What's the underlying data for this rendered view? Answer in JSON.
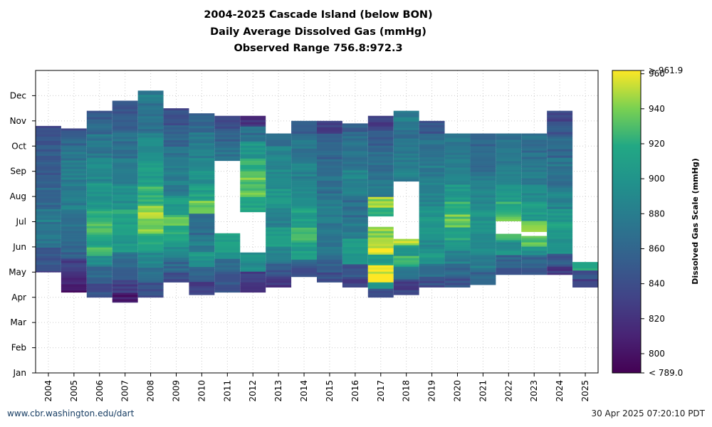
{
  "title_lines": [
    "2004-2025 Cascade Island (below BON)",
    "Daily Average Dissolved Gas (mmHg)",
    "Observed Range 756.8:972.3"
  ],
  "footer": {
    "left": "www.cbr.washington.edu/dart",
    "right": "30 Apr 2025 07:20:10 PDT"
  },
  "chart_data": {
    "type": "heatmap",
    "x_label": "",
    "y_label": "",
    "x_categories": [
      "2004",
      "2005",
      "2006",
      "2007",
      "2008",
      "2009",
      "2010",
      "2011",
      "2012",
      "2013",
      "2014",
      "2015",
      "2016",
      "2017",
      "2018",
      "2019",
      "2020",
      "2021",
      "2022",
      "2023",
      "2024",
      "2025"
    ],
    "y_ticks": [
      "Jan",
      "Feb",
      "Mar",
      "Apr",
      "May",
      "Jun",
      "Jul",
      "Aug",
      "Sep",
      "Oct",
      "Nov",
      "Dec"
    ],
    "grid": true,
    "colorbar": {
      "label": "Dissolved Gas Scale (mmHg)",
      "min": 789.0,
      "max": 961.9,
      "ticks": [
        800,
        820,
        840,
        860,
        880,
        900,
        920,
        940,
        960
      ],
      "min_label": "< 789.0",
      "max_label": "> 961.9",
      "colormap": "viridis"
    },
    "columns": [
      {
        "year": "2004",
        "start_month": 4.0,
        "end_month": 9.8,
        "segments": [
          [
            4.0,
            835
          ],
          [
            4.3,
            848
          ],
          [
            5.0,
            872
          ],
          [
            5.5,
            866
          ],
          [
            6.0,
            880
          ],
          [
            6.5,
            860
          ],
          [
            7.5,
            850
          ],
          [
            8.5,
            848
          ],
          [
            9.5,
            835
          ]
        ]
      },
      {
        "year": "2005",
        "start_month": 3.2,
        "end_month": 9.7,
        "segments": [
          [
            3.2,
            800
          ],
          [
            3.5,
            812
          ],
          [
            4.0,
            830
          ],
          [
            4.5,
            858
          ],
          [
            5.5,
            870
          ],
          [
            6.5,
            880
          ],
          [
            8.0,
            875
          ],
          [
            9.0,
            860
          ],
          [
            9.5,
            845
          ]
        ]
      },
      {
        "year": "2006",
        "start_month": 3.0,
        "end_month": 10.4,
        "segments": [
          [
            3.0,
            842
          ],
          [
            3.5,
            860
          ],
          [
            4.2,
            890
          ],
          [
            4.6,
            930
          ],
          [
            5.0,
            912
          ],
          [
            5.5,
            935
          ],
          [
            6.0,
            920
          ],
          [
            6.5,
            902
          ],
          [
            7.5,
            890
          ],
          [
            8.5,
            875
          ],
          [
            9.5,
            860
          ],
          [
            10.0,
            850
          ]
        ]
      },
      {
        "year": "2007",
        "start_month": 2.8,
        "end_month": 10.8,
        "segments": [
          [
            2.8,
            805
          ],
          [
            3.2,
            830
          ],
          [
            3.7,
            850
          ],
          [
            4.2,
            870
          ],
          [
            4.8,
            902
          ],
          [
            5.5,
            915
          ],
          [
            6.5,
            895
          ],
          [
            7.5,
            880
          ],
          [
            8.5,
            868
          ],
          [
            9.5,
            855
          ],
          [
            10.3,
            845
          ]
        ]
      },
      {
        "year": "2008",
        "start_month": 3.0,
        "end_month": 11.2,
        "segments": [
          [
            3.0,
            840
          ],
          [
            3.6,
            865
          ],
          [
            4.2,
            890
          ],
          [
            4.8,
            912
          ],
          [
            5.5,
            938
          ],
          [
            6.0,
            945
          ],
          [
            6.6,
            925
          ],
          [
            7.5,
            905
          ],
          [
            8.5,
            890
          ],
          [
            9.5,
            870
          ],
          [
            10.3,
            868
          ],
          [
            10.8,
            880
          ]
        ]
      },
      {
        "year": "2009",
        "start_month": 3.6,
        "end_month": 10.5,
        "segments": [
          [
            3.6,
            836
          ],
          [
            4.0,
            862
          ],
          [
            4.6,
            895
          ],
          [
            5.2,
            915
          ],
          [
            5.8,
            930
          ],
          [
            6.3,
            905
          ],
          [
            7.0,
            880
          ],
          [
            8.0,
            875
          ],
          [
            9.0,
            858
          ],
          [
            9.8,
            840
          ]
        ]
      },
      {
        "year": "2010",
        "start_month": 3.1,
        "end_month": 10.3,
        "segments": [
          [
            3.1,
            830
          ],
          [
            3.6,
            858
          ],
          [
            4.2,
            900
          ],
          [
            4.8,
            880
          ],
          [
            5.5,
            865
          ],
          [
            6.3,
            935
          ],
          [
            6.8,
            912
          ],
          [
            7.5,
            895
          ],
          [
            8.5,
            880
          ],
          [
            9.5,
            862
          ]
        ]
      },
      {
        "year": "2011",
        "start_month": 3.2,
        "end_month": 10.2,
        "segments": [
          [
            3.2,
            845
          ],
          [
            3.6,
            845
          ],
          [
            4.0,
            865
          ],
          [
            4.5,
            905
          ],
          [
            5.0,
            915
          ],
          [
            5.5,
            null
          ],
          [
            8.4,
            870
          ],
          [
            9.0,
            858
          ],
          [
            9.7,
            840
          ]
        ]
      },
      {
        "year": "2012",
        "start_month": 3.2,
        "end_month": 10.2,
        "segments": [
          [
            3.2,
            815
          ],
          [
            3.5,
            830
          ],
          [
            4.0,
            895
          ],
          [
            4.8,
            null
          ],
          [
            6.4,
            915
          ],
          [
            7.0,
            935
          ],
          [
            7.8,
            925
          ],
          [
            8.5,
            902
          ],
          [
            9.2,
            868
          ],
          [
            9.8,
            820
          ]
        ]
      },
      {
        "year": "2013",
        "start_month": 3.4,
        "end_month": 9.5,
        "segments": [
          [
            3.4,
            825
          ],
          [
            3.8,
            850
          ],
          [
            4.3,
            885
          ],
          [
            5.0,
            905
          ],
          [
            5.8,
            885
          ],
          [
            6.5,
            900
          ],
          [
            7.3,
            890
          ],
          [
            8.3,
            885
          ],
          [
            9.0,
            870
          ]
        ]
      },
      {
        "year": "2014",
        "start_month": 3.4,
        "end_month": 10.0,
        "segments": [
          [
            3.6,
            null
          ],
          [
            3.8,
            845
          ],
          [
            4.2,
            858
          ],
          [
            4.5,
            908
          ],
          [
            5.2,
            930
          ],
          [
            5.8,
            910
          ],
          [
            6.5,
            892
          ],
          [
            7.5,
            882
          ],
          [
            8.5,
            874
          ],
          [
            9.5,
            850
          ]
        ]
      },
      {
        "year": "2015",
        "start_month": 3.6,
        "end_month": 10.0,
        "segments": [
          [
            3.6,
            840
          ],
          [
            4.0,
            860
          ],
          [
            4.5,
            875
          ],
          [
            5.0,
            875
          ],
          [
            6.0,
            880
          ],
          [
            7.0,
            868
          ],
          [
            8.0,
            860
          ],
          [
            9.0,
            855
          ],
          [
            9.5,
            825
          ]
        ]
      },
      {
        "year": "2016",
        "start_month": 3.4,
        "end_month": 9.9,
        "segments": [
          [
            3.4,
            830
          ],
          [
            3.8,
            848
          ],
          [
            4.3,
            905
          ],
          [
            4.7,
            912
          ],
          [
            5.3,
            880
          ],
          [
            6.0,
            868
          ],
          [
            7.0,
            885
          ],
          [
            8.0,
            875
          ],
          [
            9.0,
            870
          ],
          [
            9.6,
            855
          ]
        ]
      },
      {
        "year": "2017",
        "start_month": 3.0,
        "end_month": 10.2,
        "segments": [
          [
            3.0,
            845
          ],
          [
            3.3,
            900
          ],
          [
            3.6,
            958
          ],
          [
            4.3,
            910
          ],
          [
            4.7,
            958
          ],
          [
            5.4,
            940
          ],
          [
            5.8,
            null
          ],
          [
            6.2,
            920
          ],
          [
            6.6,
            945
          ],
          [
            7.0,
            875
          ],
          [
            7.8,
            868
          ],
          [
            8.8,
            855
          ],
          [
            9.6,
            830
          ]
        ]
      },
      {
        "year": "2018",
        "start_month": 3.1,
        "end_month": 10.4,
        "segments": [
          [
            3.1,
            830
          ],
          [
            3.7,
            880
          ],
          [
            4.2,
            925
          ],
          [
            4.6,
            905
          ],
          [
            5.1,
            950
          ],
          [
            5.3,
            null
          ],
          [
            7.6,
            880
          ],
          [
            8.5,
            875
          ],
          [
            9.3,
            870
          ],
          [
            10.0,
            880
          ]
        ]
      },
      {
        "year": "2019",
        "start_month": 3.4,
        "end_month": 10.0,
        "segments": [
          [
            3.4,
            842
          ],
          [
            3.8,
            862
          ],
          [
            4.3,
            905
          ],
          [
            4.8,
            890
          ],
          [
            5.5,
            900
          ],
          [
            6.5,
            890
          ],
          [
            7.5,
            880
          ],
          [
            8.5,
            868
          ],
          [
            9.5,
            845
          ]
        ]
      },
      {
        "year": "2020",
        "start_month": 3.4,
        "end_month": 9.5,
        "segments": [
          [
            3.4,
            845
          ],
          [
            3.8,
            862
          ],
          [
            4.3,
            880
          ],
          [
            4.8,
            905
          ],
          [
            5.3,
            915
          ],
          [
            5.8,
            935
          ],
          [
            6.3,
            925
          ],
          [
            6.8,
            902
          ],
          [
            7.5,
            885
          ],
          [
            8.5,
            873
          ]
        ]
      },
      {
        "year": "2021",
        "start_month": 3.5,
        "end_month": 9.5,
        "segments": [
          [
            3.5,
            858
          ],
          [
            4.0,
            878
          ],
          [
            4.7,
            895
          ],
          [
            5.5,
            900
          ],
          [
            6.5,
            890
          ],
          [
            7.3,
            880
          ],
          [
            8.0,
            870
          ],
          [
            8.8,
            862
          ]
        ]
      },
      {
        "year": "2022",
        "start_month": 3.9,
        "end_month": 9.5,
        "segments": [
          [
            3.9,
            846
          ],
          [
            4.2,
            860
          ],
          [
            4.7,
            895
          ],
          [
            5.3,
            920
          ],
          [
            5.5,
            null
          ],
          [
            6.0,
            938
          ],
          [
            6.3,
            920
          ],
          [
            6.8,
            900
          ],
          [
            7.5,
            880
          ],
          [
            8.5,
            872
          ]
        ]
      },
      {
        "year": "2023",
        "start_month": 3.9,
        "end_month": 9.5,
        "segments": [
          [
            3.9,
            838
          ],
          [
            4.2,
            858
          ],
          [
            4.7,
            900
          ],
          [
            5.0,
            930
          ],
          [
            5.4,
            null
          ],
          [
            5.6,
            940
          ],
          [
            6.0,
            908
          ],
          [
            6.8,
            890
          ],
          [
            7.5,
            880
          ],
          [
            8.5,
            868
          ]
        ]
      },
      {
        "year": "2024",
        "start_month": 3.9,
        "end_month": 10.4,
        "segments": [
          [
            3.9,
            825
          ],
          [
            4.2,
            850
          ],
          [
            4.7,
            900
          ],
          [
            5.3,
            910
          ],
          [
            6.0,
            900
          ],
          [
            6.5,
            885
          ],
          [
            7.3,
            872
          ],
          [
            8.5,
            860
          ],
          [
            9.5,
            845
          ],
          [
            10.0,
            835
          ]
        ]
      },
      {
        "year": "2025",
        "start_month": 3.4,
        "end_month": 4.4,
        "segments": [
          [
            3.4,
            830
          ],
          [
            3.7,
            845
          ],
          [
            4.1,
            920
          ]
        ]
      }
    ]
  }
}
